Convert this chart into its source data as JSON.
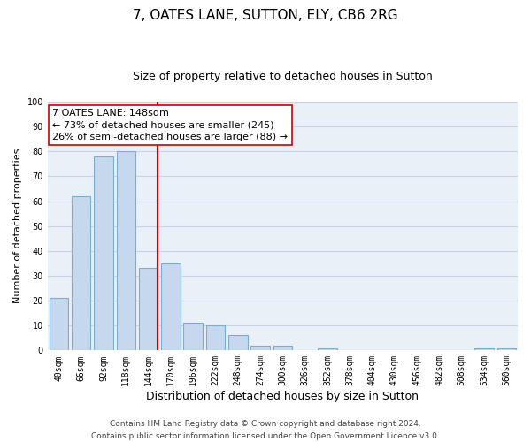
{
  "title": "7, OATES LANE, SUTTON, ELY, CB6 2RG",
  "subtitle": "Size of property relative to detached houses in Sutton",
  "xlabel": "Distribution of detached houses by size in Sutton",
  "ylabel": "Number of detached properties",
  "categories": [
    "40sqm",
    "66sqm",
    "92sqm",
    "118sqm",
    "144sqm",
    "170sqm",
    "196sqm",
    "222sqm",
    "248sqm",
    "274sqm",
    "300sqm",
    "326sqm",
    "352sqm",
    "378sqm",
    "404sqm",
    "430sqm",
    "456sqm",
    "482sqm",
    "508sqm",
    "534sqm",
    "560sqm"
  ],
  "values": [
    21,
    62,
    78,
    80,
    33,
    35,
    11,
    10,
    6,
    2,
    2,
    0,
    1,
    0,
    0,
    0,
    0,
    0,
    0,
    1,
    1
  ],
  "bar_color": "#c5d8ed",
  "bar_edge_color": "#7aafd4",
  "property_line_color": "#cc0000",
  "annotation_text": "7 OATES LANE: 148sqm\n← 73% of detached houses are smaller (245)\n26% of semi-detached houses are larger (88) →",
  "annotation_box_color": "#ffffff",
  "annotation_box_edge": "#cc0000",
  "ylim": [
    0,
    100
  ],
  "yticks": [
    0,
    10,
    20,
    30,
    40,
    50,
    60,
    70,
    80,
    90,
    100
  ],
  "grid_color": "#c8d4e8",
  "bg_color": "#eaf0f8",
  "footer_line1": "Contains HM Land Registry data © Crown copyright and database right 2024.",
  "footer_line2": "Contains public sector information licensed under the Open Government Licence v3.0.",
  "title_fontsize": 11,
  "subtitle_fontsize": 9,
  "xlabel_fontsize": 9,
  "ylabel_fontsize": 8,
  "tick_fontsize": 7,
  "annotation_fontsize": 8,
  "footer_fontsize": 6.5
}
